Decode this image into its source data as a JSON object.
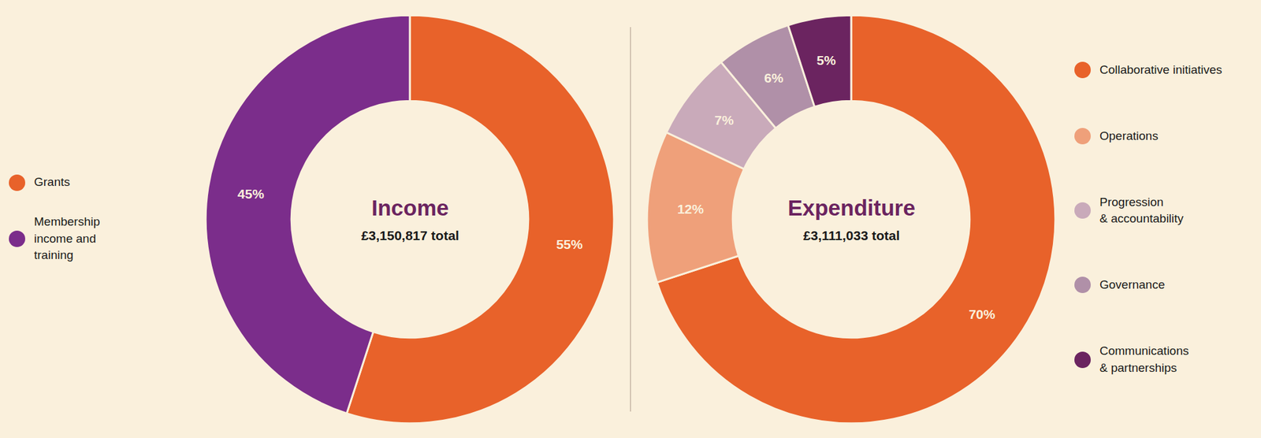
{
  "chart_data": [
    {
      "type": "pie",
      "title": "Income",
      "subtitle": "£3,150,817 total",
      "categories": [
        "Grants",
        "Membership\nincome and\ntraining"
      ],
      "values": [
        55,
        45
      ],
      "value_labels": [
        "55%",
        "45%"
      ],
      "colors": [
        "#E8622A",
        "#7B2D8B"
      ],
      "data_labels": true,
      "legend": "left"
    },
    {
      "type": "pie",
      "title": "Expenditure",
      "subtitle": "£3,111,033 total",
      "categories": [
        "Collaborative initiatives",
        "Operations",
        "Progression\n& accountability",
        "Governance",
        "Communications\n& partnerships"
      ],
      "values": [
        70,
        12,
        7,
        6,
        5
      ],
      "value_labels": [
        "70%",
        "12%",
        "7%",
        "6%",
        "5%"
      ],
      "colors": [
        "#E8622A",
        "#EFA07A",
        "#C9AABA",
        "#B090A8",
        "#6B2460"
      ],
      "data_labels": true,
      "legend": "right"
    }
  ]
}
